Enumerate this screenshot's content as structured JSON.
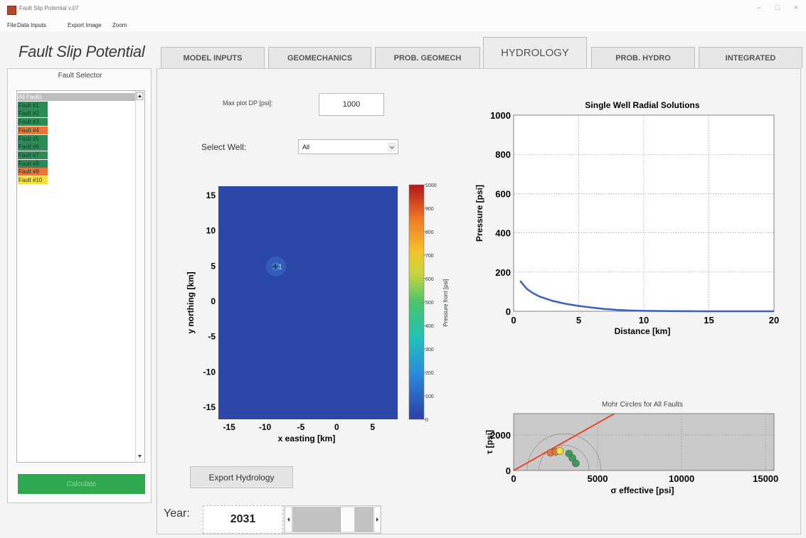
{
  "window": {
    "title": "Fault Slip Potential v.07",
    "min": "–",
    "max": "□",
    "close": "×"
  },
  "menu": [
    "File",
    "Data Inputs",
    "Export Image",
    "Zoom"
  ],
  "brand": "Fault Slip Potential",
  "tabs": [
    {
      "label": "MODEL INPUTS"
    },
    {
      "label": "GEOMECHANICS"
    },
    {
      "label": "PROB. GEOMECH"
    },
    {
      "label": "HYDROLOGY",
      "active": true
    },
    {
      "label": "PROB. HYDRO"
    },
    {
      "label": "INTEGRATED"
    }
  ],
  "fault_selector": {
    "title": "Fault Selector",
    "items": [
      {
        "label": "All Faults",
        "color": "#bdbdbd"
      },
      {
        "label": "Fault #1",
        "color": "#2e8b57"
      },
      {
        "label": "Fault #2",
        "color": "#2e8b57"
      },
      {
        "label": "Fault #3",
        "color": "#2e8b57"
      },
      {
        "label": "Fault #4",
        "color": "#e8743b"
      },
      {
        "label": "Fault #5",
        "color": "#2e8b57"
      },
      {
        "label": "Fault #6",
        "color": "#2e8b57"
      },
      {
        "label": "Fault #7",
        "color": "#2e8b57"
      },
      {
        "label": "Fault #8",
        "color": "#2e8b57"
      },
      {
        "label": "Fault #9",
        "color": "#e8743b"
      },
      {
        "label": "Fault #10",
        "color": "#f2e23a"
      }
    ],
    "calculate_label": "Calculate"
  },
  "controls": {
    "max_dp_label": "Max plot DP [psi]:",
    "max_dp_value": "1000",
    "select_well_label": "Select Well:",
    "select_well_value": "All",
    "export_label": "Export Hydrology",
    "year_label": "Year:",
    "year_value": "2031",
    "year_slider_fraction": 0.72
  },
  "map": {
    "xlabel": "x easting [km]",
    "ylabel": "y northing [km]",
    "x_ticks": [
      "-15",
      "-10",
      "-5",
      "0",
      "5"
    ],
    "y_ticks": [
      "15",
      "10",
      "5",
      "0",
      "-5",
      "-10",
      "-15"
    ],
    "well_label": "1",
    "colorbar_label": "Pressure front [psi]",
    "colorbar_ticks": [
      "1000",
      "900",
      "800",
      "700",
      "600",
      "500",
      "400",
      "300",
      "200",
      "100",
      "0"
    ],
    "field_color": "#2b48a8"
  },
  "chart_data": [
    {
      "type": "line",
      "title": "Single Well Radial Solutions",
      "xlabel": "Distance [km]",
      "ylabel": "Pressure [psi]",
      "xlim": [
        0,
        20
      ],
      "ylim": [
        0,
        1000
      ],
      "x_ticks": [
        "0",
        "5",
        "10",
        "15",
        "20"
      ],
      "y_ticks": [
        "0",
        "200",
        "400",
        "600",
        "800",
        "1000"
      ],
      "grid": true,
      "series": [
        {
          "color": "#3b5fc2",
          "x": [
            0.5,
            1,
            1.5,
            2,
            3,
            4,
            5,
            6,
            7,
            8,
            9,
            10,
            12,
            15,
            20
          ],
          "y": [
            155,
            115,
            92,
            75,
            53,
            38,
            27,
            19,
            12,
            7,
            4,
            2,
            1,
            0,
            0
          ]
        }
      ]
    },
    {
      "type": "scatter",
      "title": "Mohr Circles for All Faults",
      "xlabel": "σ effective [psi]",
      "ylabel": "τ [psi]",
      "xlim": [
        0,
        15500
      ],
      "ylim": [
        0,
        3200
      ],
      "x_ticks": [
        "0",
        "5000",
        "10000",
        "15000"
      ],
      "y_ticks": [
        "0",
        "2000"
      ],
      "grid": true,
      "failure_line": {
        "x": [
          0,
          6000
        ],
        "y": [
          0,
          3200
        ],
        "color": "#e8472a"
      },
      "points": [
        {
          "x": 2200,
          "y": 1000,
          "color": "#e8743b"
        },
        {
          "x": 2500,
          "y": 1050,
          "color": "#e8743b"
        },
        {
          "x": 2750,
          "y": 1100,
          "color": "#f2e23a"
        },
        {
          "x": 3300,
          "y": 950,
          "color": "#3f9a5a"
        },
        {
          "x": 3500,
          "y": 700,
          "color": "#3f9a5a"
        },
        {
          "x": 3700,
          "y": 400,
          "color": "#3f9a5a"
        }
      ]
    }
  ]
}
